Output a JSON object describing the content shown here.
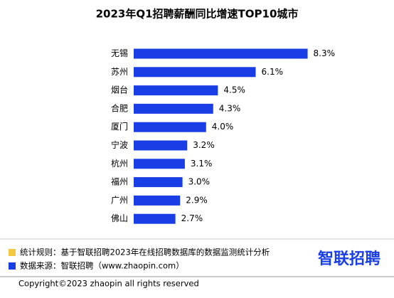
{
  "chart_data": {
    "type": "hbar",
    "title": "2023年Q1招聘薪酬同比增速TOP10城市",
    "categories": [
      "无锡",
      "苏州",
      "烟台",
      "合肥",
      "厦门",
      "宁波",
      "杭州",
      "福州",
      "广州",
      "佛山"
    ],
    "values": [
      8.3,
      6.1,
      4.5,
      4.3,
      4.0,
      3.2,
      3.1,
      3.0,
      2.9,
      2.7
    ],
    "value_labels": [
      "8.3%",
      "6.1%",
      "4.5%",
      "4.3%",
      "4.0%",
      "3.2%",
      "3.1%",
      "3.0%",
      "2.9%",
      "2.7%"
    ],
    "color": "#1a3ee6"
  },
  "footer": {
    "notes": [
      {
        "color": "#f5c842",
        "text": "统计规则：基于智联招聘2023年在线招聘数据库的数据监测统计分析"
      },
      {
        "color": "#1a3ee6",
        "text": "数据来源：智联招聘（www.zhaopin.com）"
      }
    ],
    "logo": "智联招聘",
    "copyright": "Copyright©2023 zhaopin all rights reserved"
  }
}
